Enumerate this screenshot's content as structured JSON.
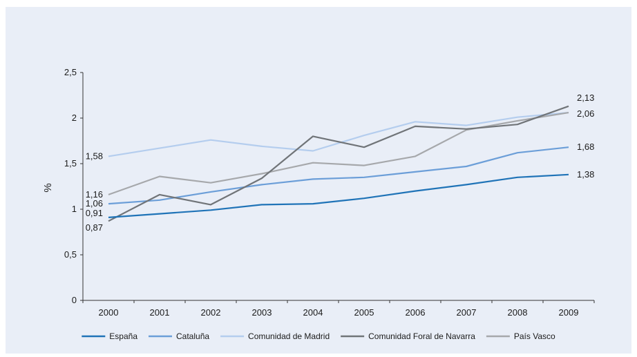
{
  "chart_data": {
    "type": "line",
    "ylabel": "%",
    "xlabel": "",
    "ylim": [
      0,
      2.5
    ],
    "yticks": [
      "0",
      "0,5",
      "1",
      "1,5",
      "2",
      "2,5"
    ],
    "ytick_values": [
      0,
      0.5,
      1,
      1.5,
      2,
      2.5
    ],
    "categories": [
      "2000",
      "2001",
      "2002",
      "2003",
      "2004",
      "2005",
      "2006",
      "2007",
      "2008",
      "2009"
    ],
    "legend_position": "bottom",
    "grid": false,
    "series": [
      {
        "name": "España",
        "color": "#1f73b7",
        "values": [
          0.91,
          0.95,
          0.99,
          1.05,
          1.06,
          1.12,
          1.2,
          1.27,
          1.35,
          1.38
        ],
        "start_label": "0,91",
        "end_label": "1,38"
      },
      {
        "name": "Cataluña",
        "color": "#6b9ed8",
        "values": [
          1.06,
          1.1,
          1.19,
          1.27,
          1.33,
          1.35,
          1.41,
          1.47,
          1.62,
          1.68
        ],
        "start_label": "1,06",
        "end_label": "1,68"
      },
      {
        "name": "Comunidad de Madrid",
        "color": "#b4cdee",
        "values": [
          1.58,
          1.67,
          1.76,
          1.69,
          1.64,
          1.81,
          1.96,
          1.92,
          2.01,
          2.06
        ],
        "start_label": "1,58",
        "end_label": ""
      },
      {
        "name": "Comunidad Foral de Navarra",
        "color": "#707478",
        "values": [
          0.87,
          1.16,
          1.05,
          1.34,
          1.8,
          1.68,
          1.91,
          1.88,
          1.93,
          2.13
        ],
        "start_label": "0,87",
        "end_label": "2,13"
      },
      {
        "name": "País Vasco",
        "color": "#a6a8ab",
        "values": [
          1.16,
          1.36,
          1.29,
          1.39,
          1.51,
          1.48,
          1.58,
          1.87,
          1.97,
          2.06
        ],
        "start_label": "1,16",
        "end_label": "2,06"
      }
    ]
  }
}
